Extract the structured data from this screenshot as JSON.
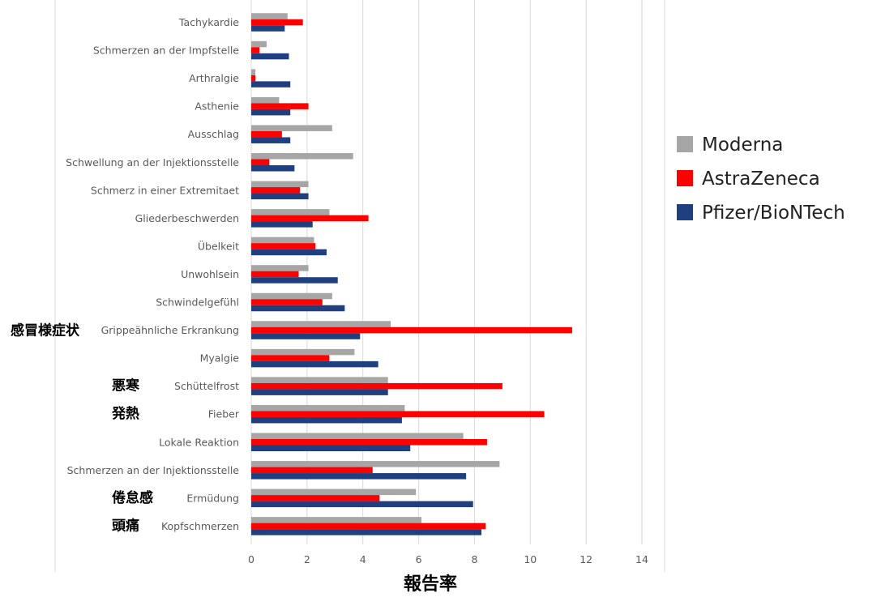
{
  "chart_data": {
    "type": "bar",
    "orientation": "horizontal",
    "categories": [
      "Tachykardie",
      "Schmerzen an der Impfstelle",
      "Arthralgie",
      "Asthenie",
      "Ausschlag",
      "Schwellung an der Injektionsstelle",
      "Schmerz in einer Extremitaet",
      "Gliederbeschwerden",
      "Übelkeit",
      "Unwohlsein",
      "Schwindelgefühl",
      "Grippeähnliche Erkrankung",
      "Myalgie",
      "Schüttelfrost",
      "Fieber",
      "Lokale Reaktion",
      "Schmerzen an der Injektionsstelle",
      "Ermüdung",
      "Kopfschmerzen"
    ],
    "series": [
      {
        "name": "Moderna",
        "color": "#A6A6A6",
        "values": [
          1.3,
          0.55,
          0.15,
          1.0,
          2.9,
          3.65,
          2.05,
          2.8,
          2.25,
          2.05,
          2.9,
          5.0,
          3.7,
          4.9,
          5.5,
          7.6,
          8.9,
          5.9,
          6.1
        ]
      },
      {
        "name": "AstraZeneca",
        "color": "#FF0000",
        "values": [
          1.85,
          0.3,
          0.15,
          2.05,
          1.1,
          0.65,
          1.75,
          4.2,
          2.3,
          1.7,
          2.55,
          11.5,
          2.8,
          9.0,
          10.5,
          8.45,
          4.35,
          4.6,
          8.4
        ]
      },
      {
        "name": "Pfizer/BioNTech",
        "color": "#1F3F7F",
        "values": [
          1.2,
          1.35,
          1.4,
          1.4,
          1.4,
          1.55,
          2.05,
          2.2,
          2.7,
          3.1,
          3.35,
          3.9,
          4.55,
          4.9,
          5.4,
          5.7,
          7.7,
          7.95,
          8.25
        ]
      }
    ],
    "jp_labels": {
      "Grippeähnliche Erkrankung": "感冒様症状",
      "Schüttelfrost": "悪寒",
      "Fieber": "発熱",
      "Ermüdung": "倦怠感",
      "Kopfschmerzen": "頭痛"
    },
    "xlim": [
      0,
      14
    ],
    "xticks": [
      0,
      2,
      4,
      6,
      8,
      10,
      12,
      14
    ],
    "xlabel": "報告率",
    "ylabel": "",
    "title": "",
    "grid": "vertical",
    "legend_position": "right"
  }
}
